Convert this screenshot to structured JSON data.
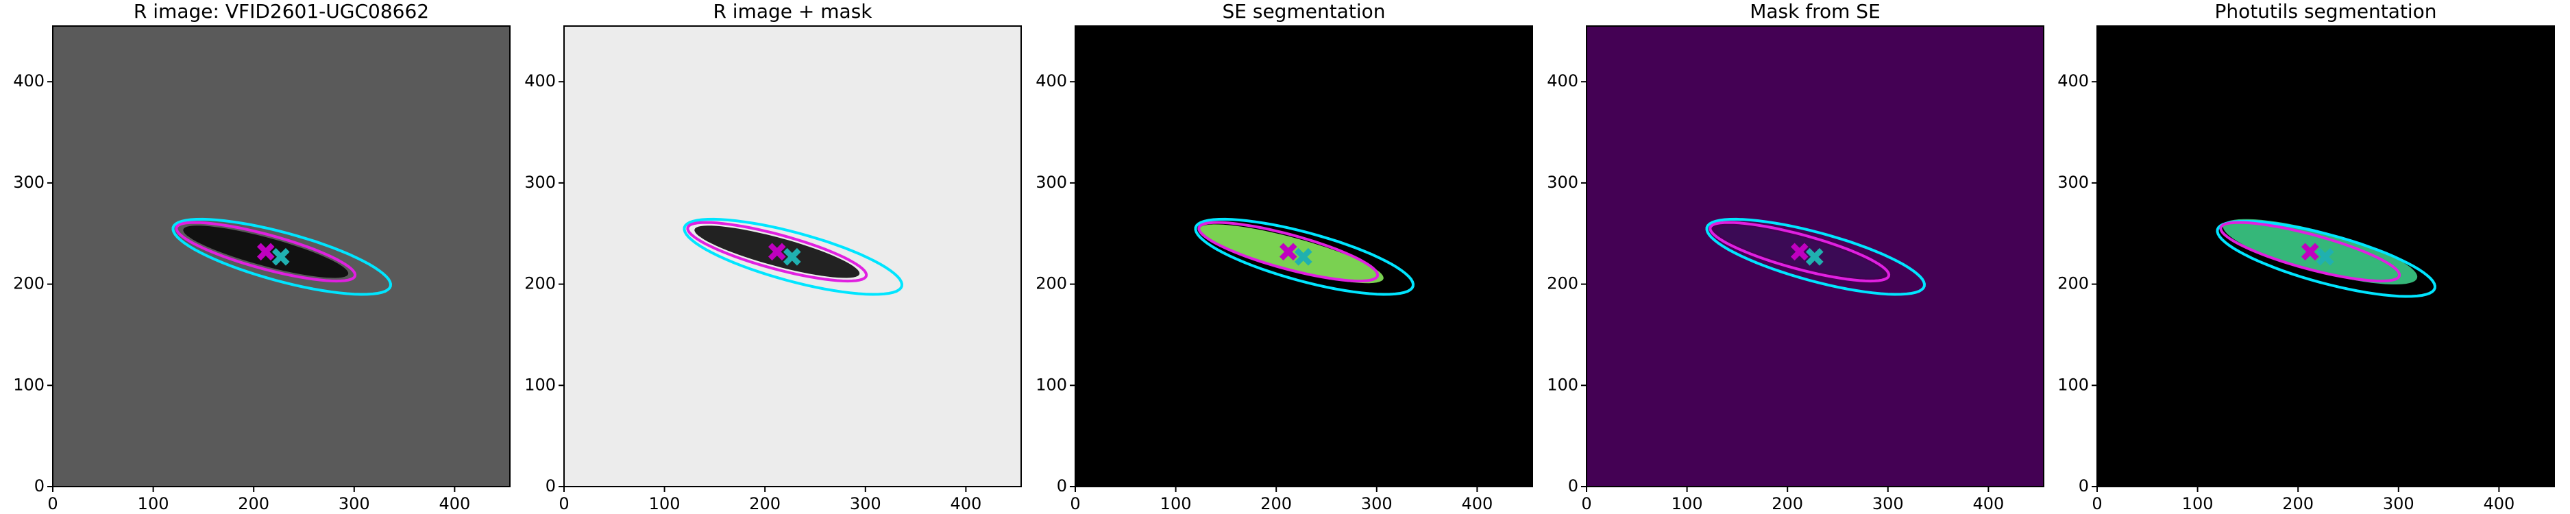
{
  "chart_data": [
    {
      "type": "image",
      "title": "R image: VFID2601-UGC08662",
      "background": "#5a5a5a",
      "xlim": [
        0,
        455
      ],
      "ylim": [
        0,
        455
      ],
      "xticks": [
        0,
        100,
        200,
        300,
        400
      ],
      "yticks": [
        0,
        100,
        200,
        300,
        400
      ],
      "galaxy": {
        "cx": 212,
        "cy": 232,
        "a": 85,
        "b": 14,
        "angle": -15,
        "color": "#111111"
      },
      "ellipses": [
        {
          "cx": 228,
          "cy": 227,
          "a": 112,
          "b": 24,
          "angle": -15,
          "color": "#00e5ff"
        },
        {
          "cx": 212,
          "cy": 232,
          "a": 92,
          "b": 17,
          "angle": -15,
          "color": "#e020e0"
        }
      ],
      "markers": [
        {
          "x": 212,
          "y": 232,
          "color": "#c000c0"
        },
        {
          "x": 227,
          "y": 227,
          "color": "#20b0b0"
        }
      ]
    },
    {
      "type": "image",
      "title": "R image + mask",
      "background": "#ececec",
      "xlim": [
        0,
        455
      ],
      "ylim": [
        0,
        455
      ],
      "xticks": [
        0,
        100,
        200,
        300,
        400
      ],
      "yticks": [
        0,
        100,
        200,
        300,
        400
      ],
      "galaxy": {
        "cx": 212,
        "cy": 232,
        "a": 85,
        "b": 14,
        "angle": -15,
        "color": "#222222"
      },
      "ellipses": [
        {
          "cx": 228,
          "cy": 227,
          "a": 112,
          "b": 24,
          "angle": -15,
          "color": "#00e5ff"
        },
        {
          "cx": 212,
          "cy": 232,
          "a": 92,
          "b": 17,
          "angle": -15,
          "color": "#e020e0"
        }
      ],
      "markers": [
        {
          "x": 212,
          "y": 232,
          "color": "#c000c0"
        },
        {
          "x": 227,
          "y": 227,
          "color": "#20b0b0"
        }
      ]
    },
    {
      "type": "image",
      "title": "SE segmentation",
      "background": "#000000",
      "xlim": [
        0,
        455
      ],
      "ylim": [
        0,
        455
      ],
      "xticks": [
        0,
        100,
        200,
        300,
        400
      ],
      "yticks": [
        0,
        100,
        200,
        300,
        400
      ],
      "galaxy": {
        "cx": 215,
        "cy": 230,
        "a": 95,
        "b": 16,
        "angle": -15,
        "color": "#7ad151"
      },
      "ellipses": [
        {
          "cx": 228,
          "cy": 227,
          "a": 112,
          "b": 24,
          "angle": -15,
          "color": "#00e5ff"
        },
        {
          "cx": 212,
          "cy": 232,
          "a": 92,
          "b": 17,
          "angle": -15,
          "color": "#e020e0"
        }
      ],
      "markers": [
        {
          "x": 212,
          "y": 232,
          "color": "#c000c0"
        },
        {
          "x": 227,
          "y": 227,
          "color": "#20b0b0"
        }
      ]
    },
    {
      "type": "image",
      "title": "Mask from SE",
      "background": "#440154",
      "xlim": [
        0,
        455
      ],
      "ylim": [
        0,
        455
      ],
      "xticks": [
        0,
        100,
        200,
        300,
        400
      ],
      "yticks": [
        0,
        100,
        200,
        300,
        400
      ],
      "galaxy": {
        "cx": 212,
        "cy": 232,
        "a": 85,
        "b": 14,
        "angle": -15,
        "color": "#3b0a55"
      },
      "ellipses": [
        {
          "cx": 228,
          "cy": 227,
          "a": 112,
          "b": 24,
          "angle": -15,
          "color": "#00e5ff"
        },
        {
          "cx": 212,
          "cy": 232,
          "a": 92,
          "b": 17,
          "angle": -15,
          "color": "#e020e0"
        }
      ],
      "markers": [
        {
          "x": 212,
          "y": 232,
          "color": "#c000c0"
        },
        {
          "x": 227,
          "y": 227,
          "color": "#20b0b0"
        }
      ]
    },
    {
      "type": "image",
      "title": "Photutils segmentation",
      "background": "#000000",
      "xlim": [
        0,
        455
      ],
      "ylim": [
        0,
        455
      ],
      "xticks": [
        0,
        100,
        200,
        300,
        400
      ],
      "yticks": [
        0,
        100,
        200,
        300,
        400
      ],
      "galaxy": {
        "cx": 222,
        "cy": 232,
        "a": 100,
        "b": 20,
        "angle": -15,
        "color": "#35b779"
      },
      "ellipses": [
        {
          "cx": 228,
          "cy": 225,
          "a": 112,
          "b": 24,
          "angle": -15,
          "color": "#00e5ff"
        },
        {
          "cx": 212,
          "cy": 232,
          "a": 92,
          "b": 17,
          "angle": -15,
          "color": "#e020e0"
        }
      ],
      "markers": [
        {
          "x": 212,
          "y": 232,
          "color": "#c000c0"
        },
        {
          "x": 227,
          "y": 227,
          "color": "#20b0b0"
        }
      ]
    }
  ]
}
